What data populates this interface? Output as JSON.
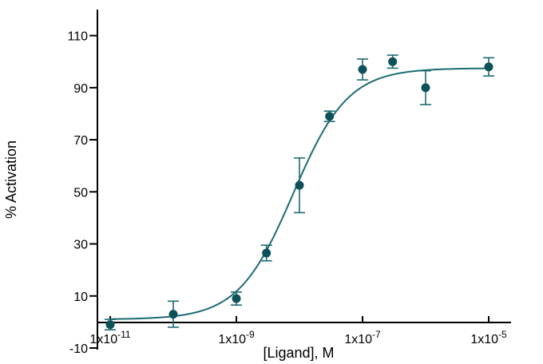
{
  "chart_data": {
    "type": "scatter",
    "title": "",
    "xlabel": "[Ligand], M",
    "ylabel": "% Activation",
    "x_scale": "log",
    "xlim": [
      1e-11,
      1e-05
    ],
    "ylim": [
      -10,
      120
    ],
    "y_ticks": [
      {
        "value": -10,
        "label": "-10"
      },
      {
        "value": 10,
        "label": "10"
      },
      {
        "value": 30,
        "label": "30"
      },
      {
        "value": 50,
        "label": "50"
      },
      {
        "value": 70,
        "label": "70"
      },
      {
        "value": 90,
        "label": "90"
      },
      {
        "value": 110,
        "label": "110"
      }
    ],
    "x_ticks": [
      {
        "value": 1e-11,
        "base": "1x10",
        "exp": "-11"
      },
      {
        "value": 1e-09,
        "base": "1x10",
        "exp": "-9"
      },
      {
        "value": 1e-07,
        "base": "1x10",
        "exp": "-7"
      },
      {
        "value": 1e-05,
        "base": "1x10",
        "exp": "-5"
      }
    ],
    "points": [
      {
        "x": 1e-11,
        "y": -1,
        "err": 2
      },
      {
        "x": 1e-10,
        "y": 3,
        "err": 5
      },
      {
        "x": 1e-09,
        "y": 9,
        "err": 2.5
      },
      {
        "x": 3e-09,
        "y": 26.5,
        "err": 3
      },
      {
        "x": 1e-08,
        "y": 52.5,
        "err": 10.5
      },
      {
        "x": 3e-08,
        "y": 79,
        "err": 2
      },
      {
        "x": 1e-07,
        "y": 97,
        "err": 4
      },
      {
        "x": 3e-07,
        "y": 100,
        "err": 2.5
      },
      {
        "x": 1e-06,
        "y": 90,
        "err": 6.5
      },
      {
        "x": 1e-05,
        "y": 98,
        "err": 3.5
      }
    ],
    "fit": {
      "model": "four-parameter logistic",
      "bottom": 1,
      "top": 97.5,
      "log_ec50": -8.1,
      "hill": 1.0
    },
    "grid": false,
    "legend": "none",
    "colors": {
      "marker": "#0d5158",
      "curve": "#1d6b72"
    }
  }
}
